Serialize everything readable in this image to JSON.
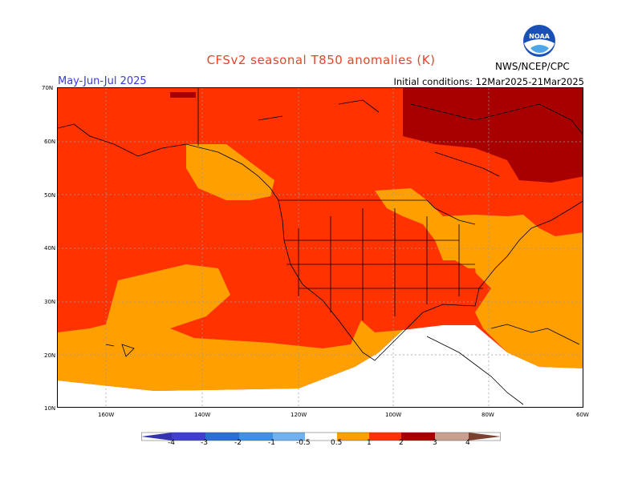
{
  "header": {
    "title": "CFSv2 seasonal T850 anomalies (K)",
    "season": "May-Jun-Jul 2025",
    "init": "Initial conditions: 12Mar2025-21Mar2025",
    "agency": "NWS/NCEP/CPC",
    "logo_text": "NOAA"
  },
  "axes": {
    "lat_labels": [
      "70N",
      "60N",
      "50N",
      "40N",
      "30N",
      "20N",
      "10N"
    ],
    "lon_labels": [
      "160W",
      "140W",
      "120W",
      "100W",
      "80W",
      "60W"
    ]
  },
  "colorbar": {
    "labels": [
      "-4",
      "-3",
      "-2",
      "-1",
      "-0.5",
      "0.5",
      "1",
      "2",
      "3",
      "4"
    ],
    "colors": [
      "#3333b0",
      "#4040cc",
      "#2a6fd6",
      "#3d92e8",
      "#6fb2ef",
      "#ffffff",
      "#ff9f00",
      "#ff3200",
      "#a80000",
      "#c9a090",
      "#7a4030"
    ]
  },
  "colors": {
    "anom_0_5_1": "#ff9f00",
    "anom_1_2": "#ff3200",
    "anom_2_3": "#a80000",
    "neutral": "#ffffff"
  }
}
